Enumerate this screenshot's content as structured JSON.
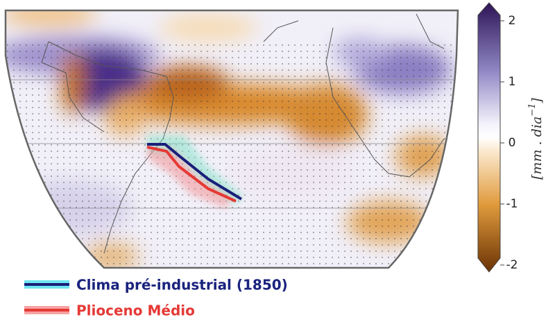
{
  "colorbar": {
    "label": "[mm . dia",
    "label_superscript": "−1",
    "label_close": "]",
    "lim": [
      -2,
      2
    ],
    "ticks": [
      2,
      1,
      0,
      -1,
      -2
    ]
  },
  "legend": [
    {
      "label": "Clima pré-industrial (1850)"
    },
    {
      "label": "Plioceno Médio"
    }
  ]
}
